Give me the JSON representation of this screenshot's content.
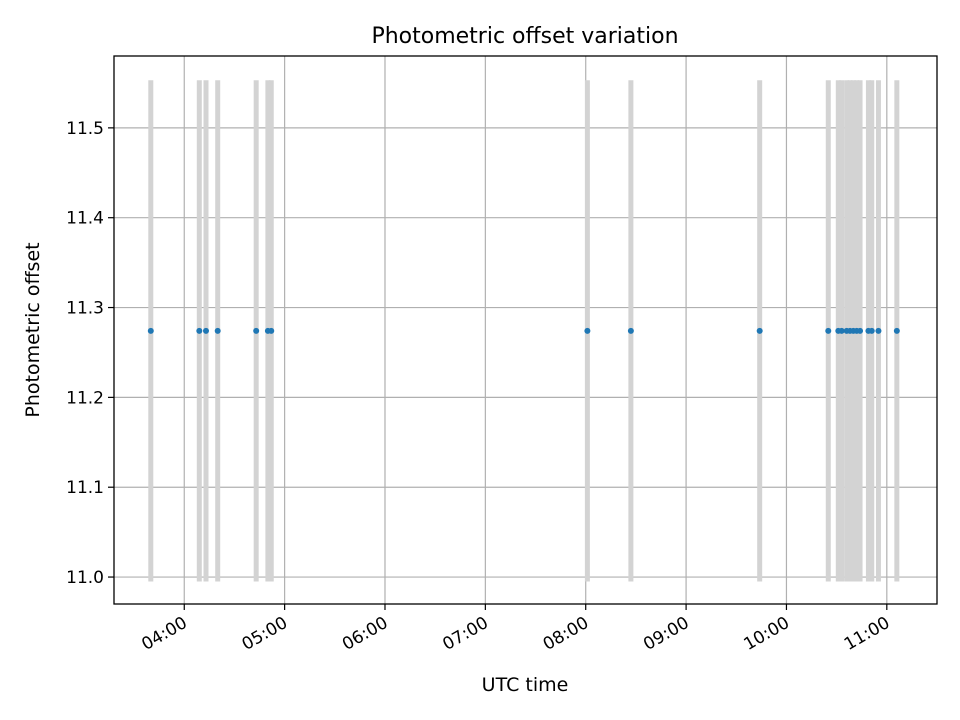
{
  "chart_data": {
    "type": "scatter",
    "title": "Photometric offset variation",
    "xlabel": "UTC time",
    "ylabel": "Photometric offset",
    "xlim": [
      "03:18",
      "11:30"
    ],
    "ylim": [
      10.97,
      11.58
    ],
    "x_ticks": [
      "04:00",
      "05:00",
      "06:00",
      "07:00",
      "08:00",
      "09:00",
      "10:00",
      "11:00"
    ],
    "y_ticks": [
      "11.0",
      "11.1",
      "11.2",
      "11.3",
      "11.4",
      "11.5"
    ],
    "grid": true,
    "point_color": "#1f77b4",
    "errorbar_color": "#d3d3d3",
    "errorbar_range": [
      10.995,
      11.553
    ],
    "series": [
      {
        "x": [
          "03:40",
          "04:09",
          "04:13",
          "04:20",
          "04:43",
          "04:50",
          "04:52",
          "08:01",
          "08:27",
          "09:44",
          "10:25",
          "10:31",
          "10:33",
          "10:36",
          "10:38",
          "10:40",
          "10:42",
          "10:44",
          "10:49",
          "10:51",
          "10:55",
          "11:06"
        ],
        "y": [
          11.274,
          11.274,
          11.274,
          11.274,
          11.274,
          11.274,
          11.274,
          11.274,
          11.274,
          11.274,
          11.274,
          11.274,
          11.274,
          11.274,
          11.274,
          11.274,
          11.274,
          11.274,
          11.274,
          11.274,
          11.274,
          11.274
        ]
      }
    ]
  }
}
